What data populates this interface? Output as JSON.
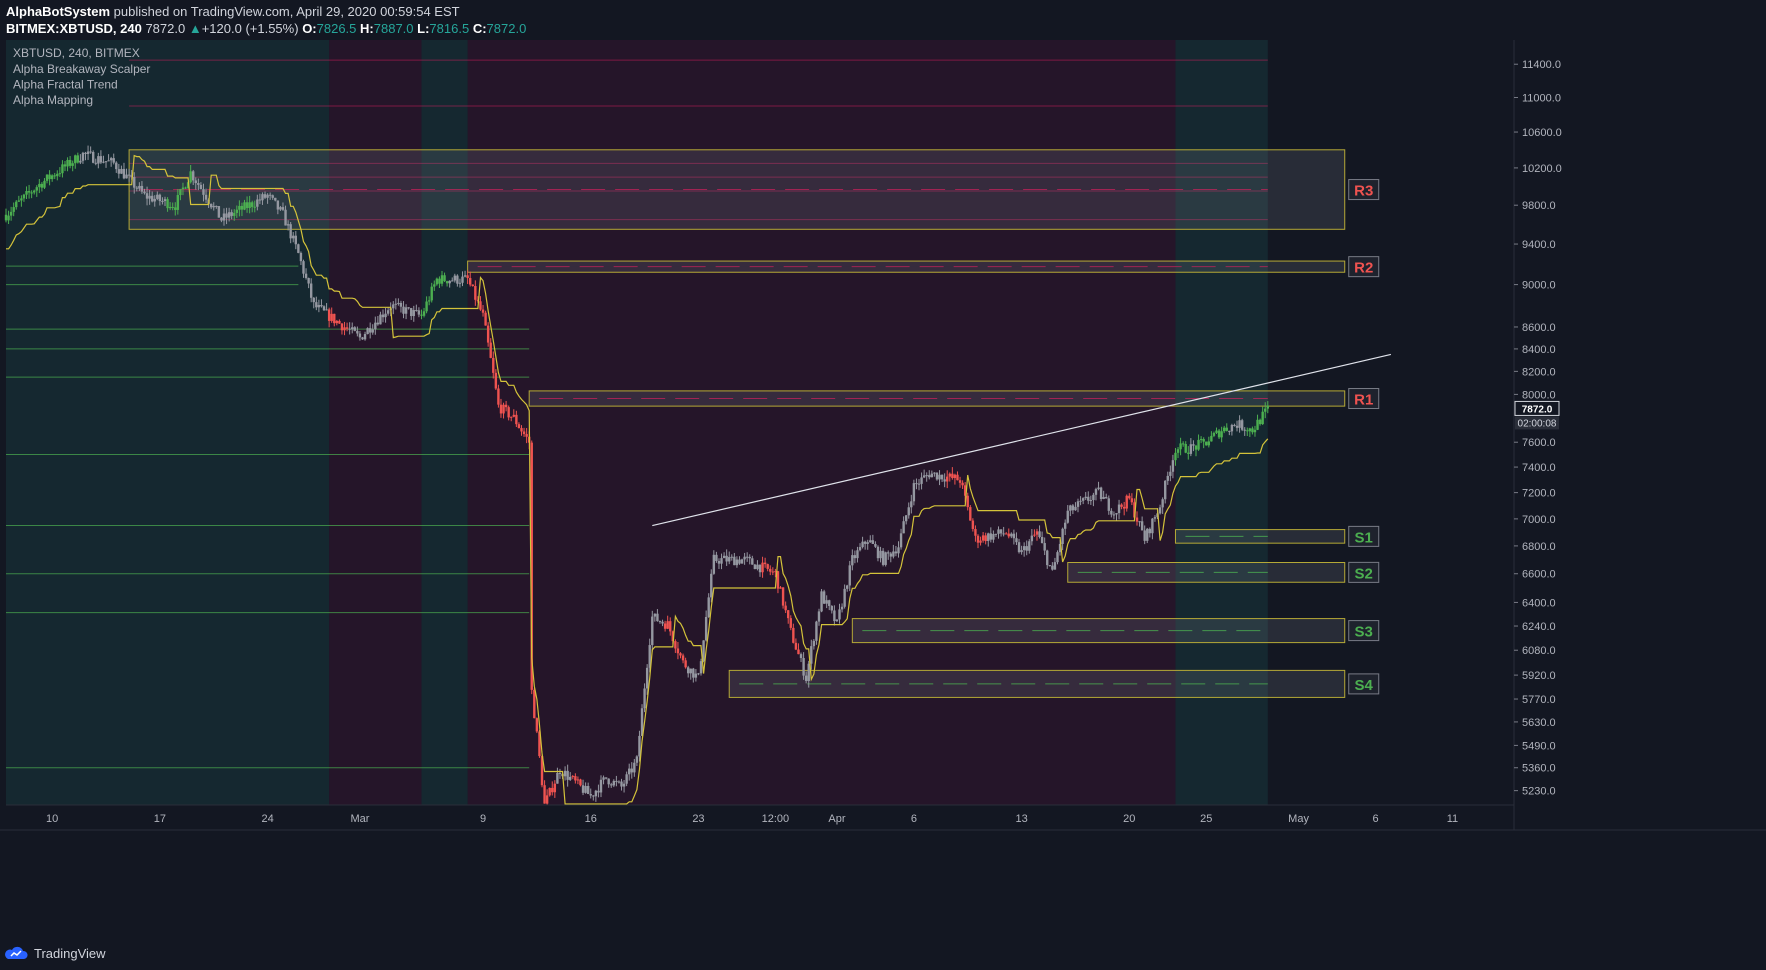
{
  "header": {
    "author": "AlphaBotSystem",
    "published": "published on TradingView.com, April 29, 2020 00:59:54 EST",
    "symbol": "BITMEX:XBTUSD, 240",
    "last": "7872.0",
    "arrow": "▲",
    "change": "+120.0 (+1.55%)",
    "o_label": "O:",
    "o": "7826.5",
    "h_label": "H:",
    "h": "7887.0",
    "l_label": "L:",
    "l": "7816.5",
    "c_label": "C:",
    "c": "7872.0"
  },
  "legend": {
    "title": "XBTUSD, 240, BITMEX",
    "indicators": [
      "Alpha Breakaway Scalper",
      "Alpha Fractal Trend",
      "Alpha Mapping"
    ]
  },
  "footer": {
    "brand": "TradingView",
    "icon": "tradingview-cloud-icon"
  },
  "price_tag": {
    "price": "7872.0",
    "countdown": "02:00:08"
  },
  "colors": {
    "background": "#131722",
    "up": "#4caf50",
    "down": "#ef5350",
    "neutral": "#9598a1",
    "trend_line": "#d4c33a",
    "zone_border": "#b5a936",
    "resistance_label": "#ef5350",
    "support_label": "#4caf50"
  },
  "chart_data": {
    "type": "candlestick",
    "symbol": "XBTUSD",
    "timeframe": "240",
    "exchange": "BITMEX",
    "y_scale": "log",
    "ylim": [
      5150,
      11700
    ],
    "y_ticks": [
      11400,
      11000,
      10600,
      10200,
      9800,
      9400,
      9000,
      8600,
      8400,
      8200,
      8000,
      7600,
      7400,
      7200,
      7000,
      6800,
      6600,
      6400,
      6240,
      6080,
      5920,
      5770,
      5630,
      5490,
      5360,
      5230
    ],
    "x_ticks": [
      {
        "label": "10",
        "date": "2020-02-10"
      },
      {
        "label": "17",
        "date": "2020-02-17"
      },
      {
        "label": "24",
        "date": "2020-02-24"
      },
      {
        "label": "Mar",
        "date": "2020-03-01"
      },
      {
        "label": "9",
        "date": "2020-03-09"
      },
      {
        "label": "16",
        "date": "2020-03-16"
      },
      {
        "label": "23",
        "date": "2020-03-23"
      },
      {
        "label": "12:00",
        "date": "2020-03-28"
      },
      {
        "label": "Apr",
        "date": "2020-04-01"
      },
      {
        "label": "6",
        "date": "2020-04-06"
      },
      {
        "label": "13",
        "date": "2020-04-13"
      },
      {
        "label": "20",
        "date": "2020-04-20"
      },
      {
        "label": "25",
        "date": "2020-04-25"
      },
      {
        "label": "May",
        "date": "2020-05-01"
      },
      {
        "label": "6",
        "date": "2020-05-06"
      },
      {
        "label": "11",
        "date": "2020-05-11"
      }
    ],
    "price_path": [
      {
        "date": "2020-02-07",
        "price": 9700
      },
      {
        "date": "2020-02-09",
        "price": 10000
      },
      {
        "date": "2020-02-12",
        "price": 10350
      },
      {
        "date": "2020-02-14",
        "price": 10250
      },
      {
        "date": "2020-02-16",
        "price": 9900
      },
      {
        "date": "2020-02-18",
        "price": 9800
      },
      {
        "date": "2020-02-19",
        "price": 10150
      },
      {
        "date": "2020-02-21",
        "price": 9650
      },
      {
        "date": "2020-02-24",
        "price": 9900
      },
      {
        "date": "2020-02-25",
        "price": 9700
      },
      {
        "date": "2020-02-26",
        "price": 9300
      },
      {
        "date": "2020-02-27",
        "price": 8800
      },
      {
        "date": "2020-02-29",
        "price": 8600
      },
      {
        "date": "2020-03-01",
        "price": 8500
      },
      {
        "date": "2020-03-03",
        "price": 8800
      },
      {
        "date": "2020-03-05",
        "price": 8700
      },
      {
        "date": "2020-03-06",
        "price": 9050
      },
      {
        "date": "2020-03-08",
        "price": 9050
      },
      {
        "date": "2020-03-09",
        "price": 8700
      },
      {
        "date": "2020-03-10",
        "price": 7900
      },
      {
        "date": "2020-03-11",
        "price": 7800
      },
      {
        "date": "2020-03-12",
        "price": 7600
      },
      {
        "date": "2020-03-12",
        "price": 5950
      },
      {
        "date": "2020-03-13",
        "price": 5150
      },
      {
        "date": "2020-03-14",
        "price": 5350
      },
      {
        "date": "2020-03-16",
        "price": 5200
      },
      {
        "date": "2020-03-17",
        "price": 5300
      },
      {
        "date": "2020-03-18",
        "price": 5250
      },
      {
        "date": "2020-03-19",
        "price": 5400
      },
      {
        "date": "2020-03-20",
        "price": 6300
      },
      {
        "date": "2020-03-21",
        "price": 6250
      },
      {
        "date": "2020-03-22",
        "price": 6000
      },
      {
        "date": "2020-03-23",
        "price": 5900
      },
      {
        "date": "2020-03-24",
        "price": 6700
      },
      {
        "date": "2020-03-26",
        "price": 6700
      },
      {
        "date": "2020-03-28",
        "price": 6600
      },
      {
        "date": "2020-03-29",
        "price": 6200
      },
      {
        "date": "2020-03-30",
        "price": 5900
      },
      {
        "date": "2020-03-31",
        "price": 6450
      },
      {
        "date": "2020-04-01",
        "price": 6250
      },
      {
        "date": "2020-04-02",
        "price": 6700
      },
      {
        "date": "2020-04-03",
        "price": 6850
      },
      {
        "date": "2020-04-04",
        "price": 6700
      },
      {
        "date": "2020-04-05",
        "price": 6800
      },
      {
        "date": "2020-04-06",
        "price": 7250
      },
      {
        "date": "2020-04-07",
        "price": 7350
      },
      {
        "date": "2020-04-09",
        "price": 7300
      },
      {
        "date": "2020-04-10",
        "price": 6850
      },
      {
        "date": "2020-04-12",
        "price": 6900
      },
      {
        "date": "2020-04-13",
        "price": 6750
      },
      {
        "date": "2020-04-14",
        "price": 6900
      },
      {
        "date": "2020-04-15",
        "price": 6600
      },
      {
        "date": "2020-04-16",
        "price": 7050
      },
      {
        "date": "2020-04-18",
        "price": 7200
      },
      {
        "date": "2020-04-19",
        "price": 7050
      },
      {
        "date": "2020-04-20",
        "price": 7150
      },
      {
        "date": "2020-04-21",
        "price": 6850
      },
      {
        "date": "2020-04-22",
        "price": 7100
      },
      {
        "date": "2020-04-23",
        "price": 7550
      },
      {
        "date": "2020-04-24",
        "price": 7550
      },
      {
        "date": "2020-04-25",
        "price": 7600
      },
      {
        "date": "2020-04-26",
        "price": 7700
      },
      {
        "date": "2020-04-27",
        "price": 7750
      },
      {
        "date": "2020-04-28",
        "price": 7700
      },
      {
        "date": "2020-04-29",
        "price": 7872
      }
    ],
    "trend_line": [
      {
        "date": "2020-03-20",
        "price": 6950
      },
      {
        "date": "2020-05-07",
        "price": 8350
      }
    ],
    "zones": [
      {
        "label": "R3",
        "type": "resistance",
        "from": "2020-02-15",
        "to": "2020-05-04",
        "low": 9550,
        "high": 10400
      },
      {
        "label": "R2",
        "type": "resistance",
        "from": "2020-03-08",
        "to": "2020-05-04",
        "low": 9120,
        "high": 9230
      },
      {
        "label": "R1",
        "type": "resistance",
        "from": "2020-03-12",
        "to": "2020-05-04",
        "low": 7900,
        "high": 8030
      },
      {
        "label": "S1",
        "type": "support",
        "from": "2020-04-23",
        "to": "2020-05-04",
        "low": 6820,
        "high": 6920
      },
      {
        "label": "S2",
        "type": "support",
        "from": "2020-04-16",
        "to": "2020-05-04",
        "low": 6540,
        "high": 6680
      },
      {
        "label": "S3",
        "type": "support",
        "from": "2020-04-02",
        "to": "2020-05-04",
        "low": 6130,
        "high": 6290
      },
      {
        "label": "S4",
        "type": "support",
        "from": "2020-03-25",
        "to": "2020-05-04",
        "low": 5780,
        "high": 5950
      }
    ],
    "trend_shading": [
      {
        "from": "2020-02-07",
        "to": "2020-02-28",
        "trend": "up"
      },
      {
        "from": "2020-02-28",
        "to": "2020-03-05",
        "trend": "down"
      },
      {
        "from": "2020-03-05",
        "to": "2020-03-08",
        "trend": "up"
      },
      {
        "from": "2020-03-08",
        "to": "2020-04-23",
        "trend": "down"
      },
      {
        "from": "2020-04-23",
        "to": "2020-04-29",
        "trend": "up"
      }
    ],
    "last_price": 7872.0
  }
}
